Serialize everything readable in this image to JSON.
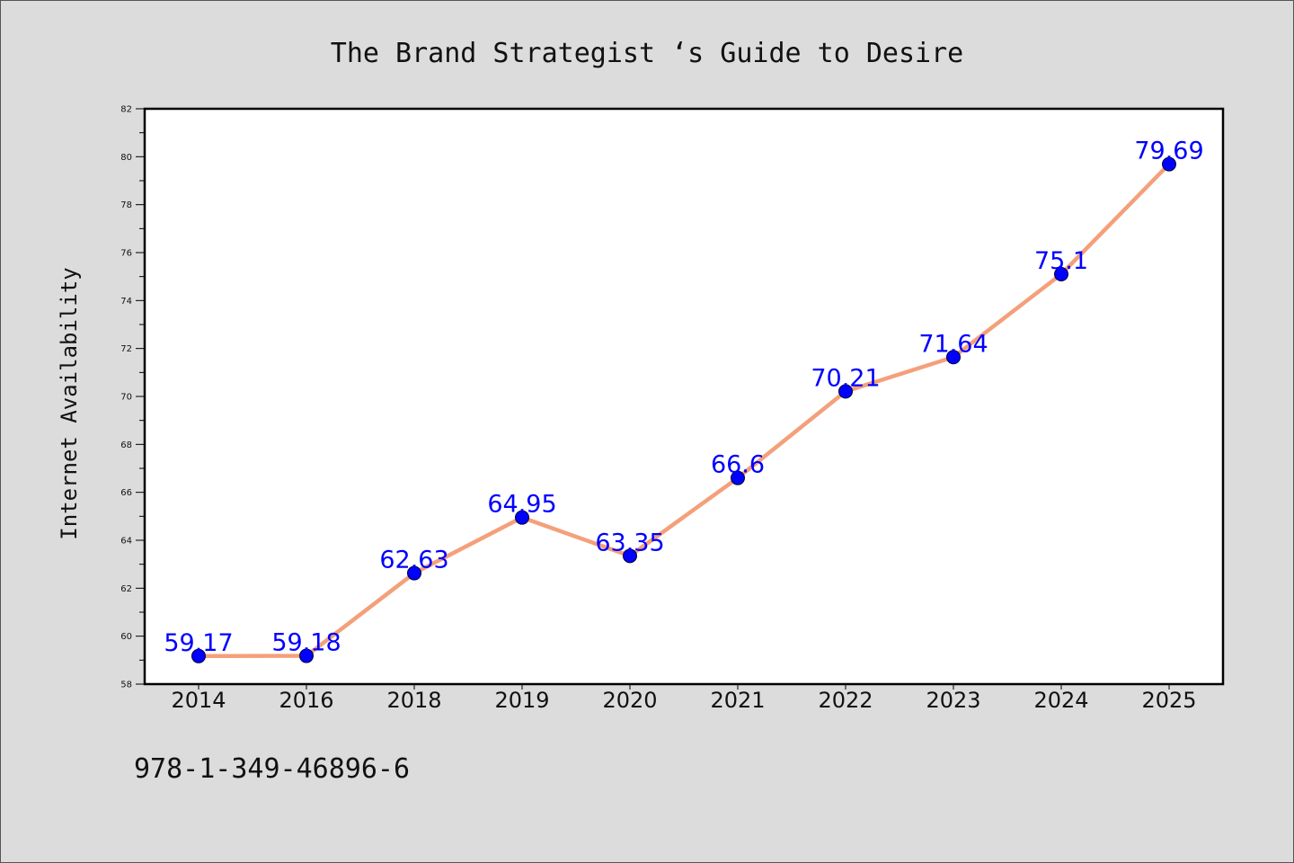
{
  "chart_data": {
    "type": "line",
    "title": "The Brand Strategist ‘s Guide to Desire",
    "xlabel": "",
    "ylabel": "Internet Availability",
    "categories": [
      "2014",
      "2016",
      "2018",
      "2019",
      "2020",
      "2021",
      "2022",
      "2023",
      "2024",
      "2025"
    ],
    "series": [
      {
        "values": [
          59.17,
          59.18,
          62.63,
          64.95,
          63.35,
          66.6,
          70.21,
          71.64,
          75.1,
          79.69
        ],
        "labels": [
          "59.17",
          "59.18",
          "62.63",
          "64.95",
          "63.35",
          "66.6",
          "70.21",
          "71.64",
          "75.1",
          "79.69"
        ]
      }
    ],
    "ylim": [
      58,
      82
    ],
    "yticks": [
      "58",
      "60",
      "62",
      "64",
      "66",
      "68",
      "70",
      "72",
      "74",
      "76",
      "78",
      "80",
      "82"
    ],
    "grid": false,
    "line_color": "#f4a07a",
    "marker_color": "#0000ff",
    "label_color": "#0000ff"
  },
  "footer": {
    "isbn": "978-1-349-46896-6"
  }
}
